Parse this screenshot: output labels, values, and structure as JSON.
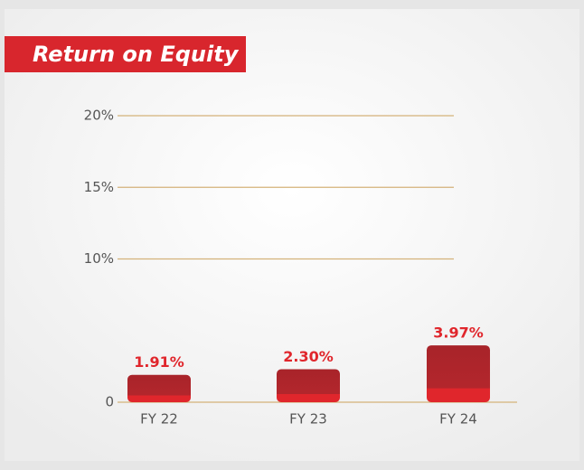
{
  "chart_data": {
    "type": "bar",
    "title": "Return on Equity",
    "categories": [
      "FY 22",
      "FY 23",
      "FY 24"
    ],
    "values": [
      1.91,
      2.3,
      3.97
    ],
    "value_labels": [
      "1.91%",
      "2.30%",
      "3.97%"
    ],
    "color": "#b3262c",
    "ylim": [
      0,
      20
    ],
    "yticks": [
      0,
      {
        "value": 10,
        "label": "10%"
      },
      {
        "value": 15,
        "label": "15%"
      },
      {
        "value": 20,
        "label": "20%"
      }
    ],
    "grid": true
  }
}
